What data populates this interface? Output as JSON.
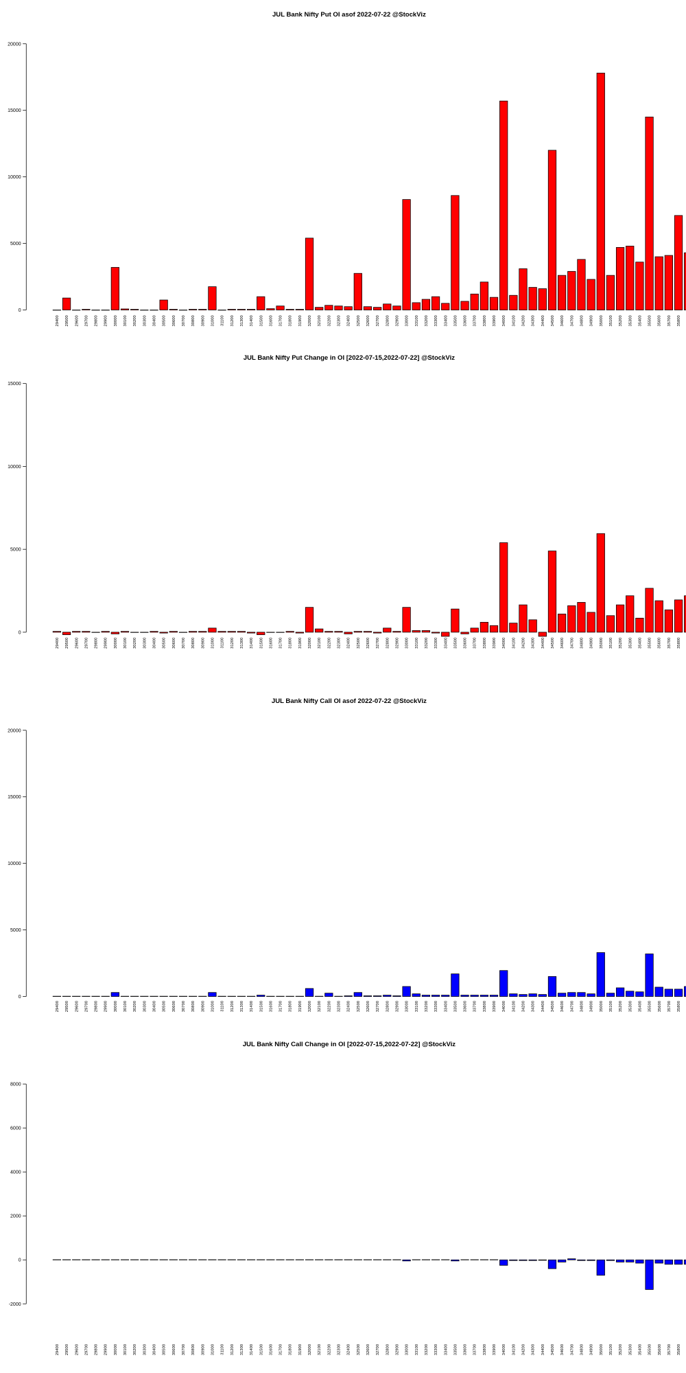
{
  "chart_data": [
    {
      "type": "bar",
      "title": "JUL Bank Nifty Put OI asof 2022-07-22 @StockViz",
      "color": "#ff0000",
      "categories": [
        29400,
        29500,
        29600,
        29700,
        29800,
        29900,
        30000,
        30100,
        30200,
        30300,
        30400,
        30500,
        30600,
        30700,
        30800,
        30900,
        31000,
        31100,
        31200,
        31300,
        31400,
        31500,
        31600,
        31700,
        31800,
        31900,
        32000,
        32100,
        32200,
        32300,
        32400,
        32500,
        32600,
        32700,
        32800,
        32900,
        33000,
        33100,
        33200,
        33300,
        33400,
        33500,
        33600,
        33700,
        33800,
        33900,
        34000,
        34100,
        34200,
        34300,
        34400,
        34500,
        34600,
        34700,
        34800,
        34900,
        35000,
        35100,
        35200,
        35300,
        35400,
        35500,
        35600,
        35700,
        35800,
        35900
      ],
      "values": [
        0,
        900,
        0,
        50,
        0,
        0,
        3200,
        80,
        50,
        0,
        0,
        750,
        50,
        0,
        50,
        50,
        1750,
        0,
        50,
        50,
        50,
        1000,
        100,
        300,
        50,
        50,
        5400,
        200,
        350,
        300,
        250,
        2750,
        250,
        200,
        450,
        300,
        8300,
        550,
        800,
        1000,
        500,
        8600,
        650,
        1200,
        2100,
        950,
        15700,
        1100,
        3100,
        1700,
        1600,
        12000,
        2600,
        2900,
        3800,
        2300,
        17800,
        2600,
        4700,
        4800,
        3600,
        14500,
        4000,
        4100,
        7100,
        4300
      ],
      "ylim": [
        0,
        20000
      ],
      "yticks": [
        0,
        5000,
        10000,
        15000,
        20000
      ]
    },
    {
      "type": "bar",
      "title": "JUL Bank Nifty Put Change in OI [2022-07-15,2022-07-22] @StockViz",
      "color": "#ff0000",
      "categories": [
        29400,
        29500,
        29600,
        29700,
        29800,
        29900,
        30000,
        30100,
        30200,
        30300,
        30400,
        30500,
        30600,
        30700,
        30800,
        30900,
        31000,
        31100,
        31200,
        31300,
        31400,
        31500,
        31600,
        31700,
        31800,
        31900,
        32000,
        32100,
        32200,
        32300,
        32400,
        32500,
        32600,
        32700,
        32800,
        32900,
        33000,
        33100,
        33200,
        33300,
        33400,
        33500,
        33600,
        33700,
        33800,
        33900,
        34000,
        34100,
        34200,
        34300,
        34400,
        34500,
        34600,
        34700,
        34800,
        34900,
        35000,
        35100,
        35200,
        35300,
        35400,
        35500,
        35600,
        35700,
        35800,
        35900
      ],
      "values": [
        50,
        -150,
        50,
        50,
        0,
        50,
        -100,
        50,
        0,
        0,
        50,
        -50,
        50,
        0,
        50,
        50,
        250,
        50,
        50,
        50,
        -50,
        -150,
        0,
        0,
        50,
        -50,
        1500,
        200,
        50,
        50,
        -100,
        50,
        50,
        -50,
        250,
        50,
        1500,
        100,
        100,
        -50,
        -250,
        1400,
        -100,
        250,
        600,
        400,
        5400,
        550,
        1650,
        750,
        -250,
        4900,
        1100,
        1600,
        1800,
        1200,
        5950,
        1000,
        1650,
        2200,
        850,
        2650,
        1900,
        1350,
        1950,
        2200
      ],
      "ylim": [
        0,
        15000
      ],
      "yticks": [
        0,
        5000,
        10000,
        15000
      ]
    },
    {
      "type": "bar",
      "title": "JUL Bank Nifty Call OI asof 2022-07-22 @StockViz",
      "color": "#0000ff",
      "categories": [
        29400,
        29500,
        29600,
        29700,
        29800,
        29900,
        30000,
        30100,
        30200,
        30300,
        30400,
        30500,
        30600,
        30700,
        30800,
        30900,
        31000,
        31100,
        31200,
        31300,
        31400,
        31500,
        31600,
        31700,
        31800,
        31900,
        32000,
        32100,
        32200,
        32300,
        32400,
        32500,
        32600,
        32700,
        32800,
        32900,
        33000,
        33100,
        33200,
        33300,
        33400,
        33500,
        33600,
        33700,
        33800,
        33900,
        34000,
        34100,
        34200,
        34300,
        34400,
        34500,
        34600,
        34700,
        34800,
        34900,
        35000,
        35100,
        35200,
        35300,
        35400,
        35500,
        35600,
        35700,
        35800,
        35900
      ],
      "values": [
        20,
        20,
        20,
        20,
        20,
        20,
        300,
        20,
        20,
        20,
        20,
        20,
        20,
        20,
        20,
        20,
        300,
        20,
        20,
        20,
        20,
        100,
        20,
        20,
        20,
        20,
        600,
        20,
        250,
        20,
        50,
        300,
        50,
        50,
        100,
        50,
        750,
        200,
        100,
        100,
        100,
        1700,
        100,
        100,
        100,
        100,
        1950,
        200,
        150,
        200,
        150,
        1500,
        250,
        300,
        300,
        200,
        3300,
        250,
        650,
        400,
        350,
        3200,
        700,
        550,
        550,
        750
      ],
      "ylim": [
        0,
        20000
      ],
      "yticks": [
        0,
        5000,
        10000,
        15000,
        20000
      ]
    },
    {
      "type": "bar",
      "title": "JUL Bank Nifty Call Change in OI [2022-07-15,2022-07-22] @StockViz",
      "color": "#0000ff",
      "categories": [
        29400,
        29500,
        29600,
        29700,
        29800,
        29900,
        30000,
        30100,
        30200,
        30300,
        30400,
        30500,
        30600,
        30700,
        30800,
        30900,
        31000,
        31100,
        31200,
        31300,
        31400,
        31500,
        31600,
        31700,
        31800,
        31900,
        32000,
        32100,
        32200,
        32300,
        32400,
        32500,
        32600,
        32700,
        32800,
        32900,
        33000,
        33100,
        33200,
        33300,
        33400,
        33500,
        33600,
        33700,
        33800,
        33900,
        34000,
        34100,
        34200,
        34300,
        34400,
        34500,
        34600,
        34700,
        34800,
        34900,
        35000,
        35100,
        35200,
        35300,
        35400,
        35500,
        35600,
        35700,
        35800,
        35900
      ],
      "values": [
        10,
        10,
        10,
        10,
        10,
        10,
        10,
        10,
        10,
        10,
        10,
        10,
        10,
        10,
        10,
        10,
        10,
        10,
        10,
        10,
        10,
        10,
        10,
        10,
        10,
        10,
        10,
        10,
        10,
        10,
        10,
        10,
        10,
        10,
        10,
        10,
        -50,
        10,
        10,
        10,
        10,
        -50,
        10,
        10,
        10,
        10,
        -250,
        -30,
        -30,
        -30,
        -20,
        -400,
        -100,
        50,
        -30,
        -30,
        -700,
        -30,
        -100,
        -100,
        -150,
        -1350,
        -150,
        -200,
        -200,
        -200
      ],
      "ylim": [
        -2000,
        8000
      ],
      "yticks": [
        -2000,
        0,
        2000,
        4000,
        6000,
        8000
      ]
    }
  ]
}
